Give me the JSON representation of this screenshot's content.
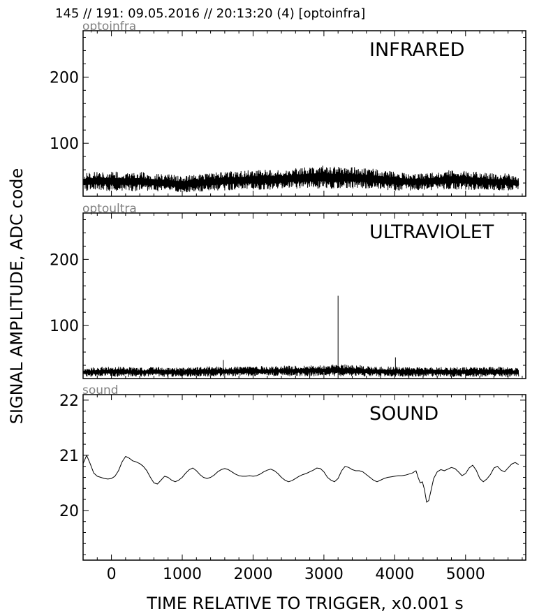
{
  "figure": {
    "title": "145 // 191:   09.05.2016 // 20:13:20 (4)  [optoinfra]"
  },
  "chart_data": [
    {
      "type": "line",
      "panel_tag": "optoinfra",
      "title": "INFRARED",
      "xlim": [
        -400,
        5850
      ],
      "ylim": [
        20,
        270
      ],
      "yticks": [
        100,
        200
      ],
      "xticks": [],
      "show_xticklabels": false,
      "grid": false,
      "series": [
        {
          "band_low": [
            [
              -400,
              28
            ],
            [
              -200,
              29
            ],
            [
              0,
              28
            ],
            [
              200,
              28
            ],
            [
              400,
              28
            ],
            [
              600,
              28
            ],
            [
              800,
              27
            ],
            [
              1000,
              26
            ],
            [
              1200,
              27
            ],
            [
              1400,
              28
            ],
            [
              1600,
              29
            ],
            [
              1800,
              30
            ],
            [
              2000,
              30
            ],
            [
              2200,
              30
            ],
            [
              2400,
              31
            ],
            [
              2600,
              32
            ],
            [
              2800,
              32
            ],
            [
              3000,
              32
            ],
            [
              3200,
              32
            ],
            [
              3400,
              32
            ],
            [
              3600,
              31
            ],
            [
              3800,
              30
            ],
            [
              4000,
              29
            ],
            [
              4200,
              29
            ],
            [
              4400,
              29
            ],
            [
              4600,
              30
            ],
            [
              4800,
              30
            ],
            [
              5000,
              30
            ],
            [
              5200,
              29
            ],
            [
              5400,
              29
            ],
            [
              5600,
              29
            ],
            [
              5750,
              29
            ]
          ],
          "band_high": [
            [
              -400,
              55
            ],
            [
              -200,
              57
            ],
            [
              0,
              57
            ],
            [
              200,
              56
            ],
            [
              400,
              57
            ],
            [
              600,
              54
            ],
            [
              800,
              53
            ],
            [
              1000,
              50
            ],
            [
              1200,
              53
            ],
            [
              1400,
              55
            ],
            [
              1600,
              57
            ],
            [
              1800,
              58
            ],
            [
              2000,
              60
            ],
            [
              2200,
              60
            ],
            [
              2400,
              60
            ],
            [
              2600,
              62
            ],
            [
              2800,
              65
            ],
            [
              3000,
              66
            ],
            [
              3200,
              64
            ],
            [
              3400,
              64
            ],
            [
              3600,
              62
            ],
            [
              3800,
              60
            ],
            [
              4000,
              57
            ],
            [
              4200,
              55
            ],
            [
              4400,
              55
            ],
            [
              4600,
              56
            ],
            [
              4800,
              60
            ],
            [
              5000,
              59
            ],
            [
              5200,
              56
            ],
            [
              5400,
              54
            ],
            [
              5600,
              54
            ],
            [
              5750,
              50
            ]
          ]
        }
      ]
    },
    {
      "type": "line",
      "panel_tag": "optoultra",
      "title": "ULTRAVIOLET",
      "xlim": [
        -400,
        5850
      ],
      "ylim": [
        20,
        270
      ],
      "yticks": [
        100,
        200
      ],
      "xticks": [],
      "show_xticklabels": false,
      "grid": false,
      "series": [
        {
          "band_low": [
            [
              -400,
              23
            ],
            [
              0,
              23
            ],
            [
              1000,
              23
            ],
            [
              2000,
              24
            ],
            [
              3000,
              24
            ],
            [
              4000,
              23
            ],
            [
              5000,
              23
            ],
            [
              5750,
              23
            ]
          ],
          "band_high": [
            [
              -400,
              36
            ],
            [
              -200,
              37
            ],
            [
              0,
              38
            ],
            [
              200,
              37
            ],
            [
              400,
              36
            ],
            [
              600,
              37
            ],
            [
              800,
              37
            ],
            [
              1000,
              36
            ],
            [
              1200,
              37
            ],
            [
              1400,
              38
            ],
            [
              1600,
              38
            ],
            [
              1800,
              38
            ],
            [
              2000,
              39
            ],
            [
              2200,
              38
            ],
            [
              2400,
              39
            ],
            [
              2600,
              39
            ],
            [
              2800,
              40
            ],
            [
              3000,
              40
            ],
            [
              3200,
              41
            ],
            [
              3400,
              41
            ],
            [
              3600,
              39
            ],
            [
              3800,
              38
            ],
            [
              4000,
              38
            ],
            [
              4200,
              37
            ],
            [
              4400,
              37
            ],
            [
              4600,
              37
            ],
            [
              4800,
              37
            ],
            [
              5000,
              37
            ],
            [
              5200,
              37
            ],
            [
              5400,
              37
            ],
            [
              5600,
              37
            ],
            [
              5750,
              36
            ]
          ],
          "spikes": [
            {
              "x": 1580,
              "y": 48
            },
            {
              "x": 3200,
              "y": 145
            },
            {
              "x": 4010,
              "y": 52
            }
          ]
        }
      ]
    },
    {
      "type": "line",
      "panel_tag": "sound",
      "title": "SOUND",
      "xlim": [
        -400,
        5850
      ],
      "ylim": [
        19.1,
        22.1
      ],
      "yticks": [
        20,
        21,
        22
      ],
      "xticks": [
        0,
        1000,
        2000,
        3000,
        4000,
        5000
      ],
      "show_xticklabels": true,
      "grid": false,
      "series": [
        {
          "x": [
            -400,
            -350,
            -300,
            -250,
            -200,
            -150,
            -100,
            -50,
            0,
            50,
            100,
            150,
            200,
            250,
            300,
            350,
            400,
            450,
            500,
            550,
            600,
            650,
            700,
            750,
            800,
            850,
            900,
            950,
            1000,
            1050,
            1100,
            1150,
            1200,
            1250,
            1300,
            1350,
            1400,
            1450,
            1500,
            1550,
            1600,
            1650,
            1700,
            1750,
            1800,
            1850,
            1900,
            1950,
            2000,
            2050,
            2100,
            2150,
            2200,
            2250,
            2300,
            2350,
            2400,
            2450,
            2500,
            2550,
            2600,
            2650,
            2700,
            2750,
            2800,
            2850,
            2900,
            2950,
            3000,
            3050,
            3100,
            3150,
            3200,
            3250,
            3300,
            3350,
            3400,
            3450,
            3500,
            3550,
            3600,
            3650,
            3700,
            3750,
            3800,
            3850,
            3900,
            3950,
            4000,
            4050,
            4100,
            4150,
            4200,
            4250,
            4300,
            4330,
            4360,
            4390,
            4420,
            4450,
            4480,
            4510,
            4550,
            4600,
            4650,
            4700,
            4750,
            4800,
            4850,
            4900,
            4950,
            5000,
            5050,
            5100,
            5150,
            5200,
            5250,
            5300,
            5350,
            5400,
            5450,
            5500,
            5550,
            5600,
            5650,
            5700,
            5750
          ],
          "y": [
            20.85,
            21.0,
            20.85,
            20.68,
            20.62,
            20.6,
            20.58,
            20.57,
            20.58,
            20.62,
            20.72,
            20.88,
            20.98,
            20.95,
            20.9,
            20.88,
            20.85,
            20.8,
            20.72,
            20.6,
            20.5,
            20.48,
            20.55,
            20.62,
            20.6,
            20.55,
            20.52,
            20.55,
            20.6,
            20.68,
            20.74,
            20.77,
            20.72,
            20.65,
            20.6,
            20.58,
            20.6,
            20.64,
            20.7,
            20.74,
            20.76,
            20.74,
            20.7,
            20.66,
            20.63,
            20.62,
            20.62,
            20.63,
            20.62,
            20.63,
            20.66,
            20.7,
            20.73,
            20.75,
            20.72,
            20.67,
            20.6,
            20.55,
            20.52,
            20.54,
            20.58,
            20.62,
            20.65,
            20.67,
            20.7,
            20.73,
            20.77,
            20.76,
            20.7,
            20.6,
            20.55,
            20.52,
            20.58,
            20.72,
            20.8,
            20.78,
            20.74,
            20.72,
            20.72,
            20.7,
            20.65,
            20.6,
            20.55,
            20.52,
            20.55,
            20.58,
            20.6,
            20.61,
            20.62,
            20.63,
            20.63,
            20.64,
            20.66,
            20.68,
            20.72,
            20.6,
            20.5,
            20.52,
            20.38,
            20.15,
            20.18,
            20.35,
            20.58,
            20.7,
            20.74,
            20.72,
            20.75,
            20.78,
            20.76,
            20.7,
            20.63,
            20.67,
            20.77,
            20.82,
            20.73,
            20.58,
            20.52,
            20.57,
            20.65,
            20.77,
            20.8,
            20.73,
            20.7,
            20.77,
            20.84,
            20.87,
            20.83
          ]
        }
      ]
    }
  ],
  "axes": {
    "xlabel": "TIME RELATIVE TO TRIGGER,   x0.001 s",
    "ylabel": "SIGNAL AMPLITUDE,  ADC code"
  }
}
